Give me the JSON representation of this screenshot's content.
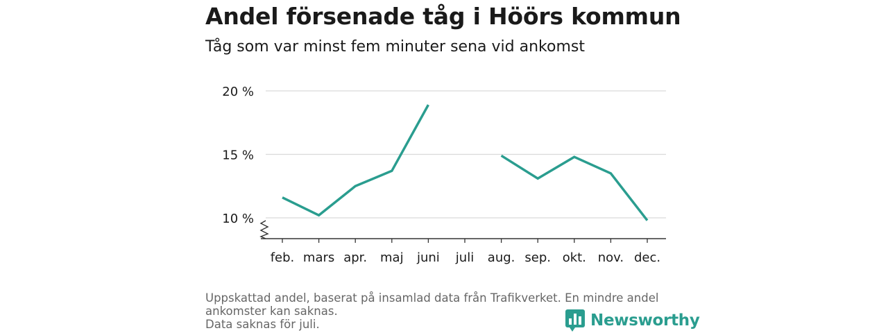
{
  "header": {
    "title": "Andel försenade tåg i Höörs kommun",
    "subtitle": "Tåg som var minst fem minuter sena vid ankomst"
  },
  "chart_data": {
    "type": "line",
    "title": "Andel försenade tåg i Höörs kommun",
    "subtitle": "Tåg som var minst fem minuter sena vid ankomst",
    "xlabel": "",
    "ylabel": "",
    "categories": [
      "feb.",
      "mars",
      "apr.",
      "maj",
      "juni",
      "juli",
      "aug.",
      "sep.",
      "okt.",
      "nov.",
      "dec."
    ],
    "series": [
      {
        "values": [
          11.6,
          10.2,
          12.5,
          13.7,
          18.9,
          null,
          14.9,
          13.1,
          14.8,
          13.5,
          9.8
        ]
      }
    ],
    "ylim": [
      8.5,
      20
    ],
    "yticks": [
      10,
      15,
      20
    ],
    "ytick_labels": [
      "10 %",
      "15 %",
      "20 %"
    ],
    "grid": "horizontal",
    "axis_break": true,
    "line_color": "#2a9d8f"
  },
  "footer": {
    "note_line1": "Uppskattad andel, baserat på insamlad data från Trafikverket. En mindre andel ankomster kan saknas.",
    "note_line2": "Data saknas för juli.",
    "brand": "Newsworthy",
    "brand_color": "#2a9d8f",
    "brand_icon": "bar-chart-icon"
  }
}
